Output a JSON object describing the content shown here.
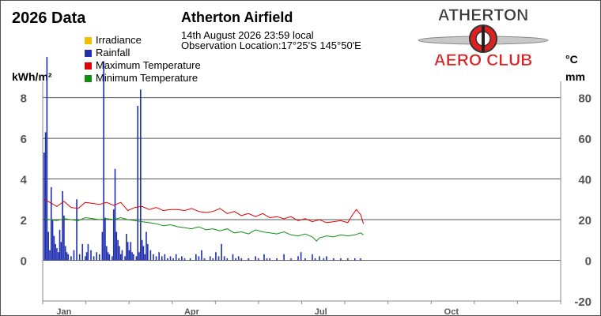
{
  "header": {
    "data_title": "2026 Data",
    "station": "Atherton Airfield",
    "obs_time": "14th August 2026  23:59 local",
    "obs_location": "Observation Location:17°25'S 145°50'E"
  },
  "logo": {
    "word_top": "ATHERTON",
    "word_bottom": "AERO CLUB",
    "colors": {
      "top": "#3a3a3a",
      "bottom": "#e02020"
    }
  },
  "units": {
    "left": "kWh/m²",
    "right_temp": "°C",
    "right_rain": "mm"
  },
  "chart_data": {
    "type": "line",
    "x_axis": {
      "tick_labels": [
        "Jan",
        "Apr",
        "Jul",
        "Oct"
      ],
      "tick_days": [
        15,
        105,
        196,
        288
      ],
      "range_days": [
        0,
        365
      ]
    },
    "y_left": {
      "ticks": [
        0,
        2,
        4,
        6,
        8
      ],
      "range": [
        -2,
        8.8
      ]
    },
    "y_right": {
      "ticks": [
        -20,
        0,
        20,
        40,
        60,
        80
      ],
      "range": [
        -20,
        88
      ]
    },
    "grid": true,
    "legend": [
      {
        "name": "Irradiance",
        "color": "#f0c000"
      },
      {
        "name": "Rainfall",
        "color": "#2030b0"
      },
      {
        "name": "Maximum Temperature",
        "color": "#e00000"
      },
      {
        "name": "Minimum Temperature",
        "color": "#109010"
      }
    ],
    "series": [
      {
        "name": "Maximum Temperature",
        "color": "#e00000",
        "axis": "right",
        "points": [
          [
            1,
            30
          ],
          [
            5,
            28.5
          ],
          [
            10,
            26.5
          ],
          [
            15,
            29
          ],
          [
            20,
            26
          ],
          [
            25,
            25.5
          ],
          [
            30,
            28.5
          ],
          [
            35,
            28
          ],
          [
            40,
            27.5
          ],
          [
            45,
            28.5
          ],
          [
            50,
            27
          ],
          [
            55,
            28.5
          ],
          [
            60,
            24.5
          ],
          [
            65,
            26
          ],
          [
            70,
            26.5
          ],
          [
            75,
            25
          ],
          [
            80,
            26
          ],
          [
            85,
            24.5
          ],
          [
            90,
            25
          ],
          [
            95,
            25
          ],
          [
            100,
            24.5
          ],
          [
            105,
            25.5
          ],
          [
            110,
            24
          ],
          [
            115,
            23.5
          ],
          [
            120,
            24
          ],
          [
            125,
            25.5
          ],
          [
            130,
            23
          ],
          [
            135,
            24
          ],
          [
            140,
            22
          ],
          [
            145,
            23
          ],
          [
            150,
            21.5
          ],
          [
            155,
            23
          ],
          [
            160,
            21
          ],
          [
            165,
            21.5
          ],
          [
            170,
            20.5
          ],
          [
            175,
            21.5
          ],
          [
            180,
            19.5
          ],
          [
            185,
            20.5
          ],
          [
            190,
            19
          ],
          [
            195,
            20
          ],
          [
            200,
            18.5
          ],
          [
            205,
            19
          ],
          [
            210,
            19.5
          ],
          [
            215,
            18.5
          ],
          [
            218,
            22
          ],
          [
            221,
            25
          ],
          [
            224,
            22.5
          ],
          [
            226,
            18
          ]
        ]
      },
      {
        "name": "Minimum Temperature",
        "color": "#109010",
        "axis": "right",
        "points": [
          [
            1,
            20.5
          ],
          [
            5,
            20
          ],
          [
            10,
            19.5
          ],
          [
            15,
            20.5
          ],
          [
            20,
            20
          ],
          [
            25,
            19.5
          ],
          [
            30,
            21
          ],
          [
            35,
            20.5
          ],
          [
            40,
            20
          ],
          [
            45,
            20.5
          ],
          [
            50,
            20
          ],
          [
            55,
            21
          ],
          [
            60,
            20
          ],
          [
            65,
            19.5
          ],
          [
            70,
            19
          ],
          [
            75,
            18.5
          ],
          [
            80,
            18
          ],
          [
            85,
            17
          ],
          [
            90,
            17.5
          ],
          [
            95,
            16.5
          ],
          [
            100,
            16
          ],
          [
            105,
            15.5
          ],
          [
            110,
            16.5
          ],
          [
            115,
            15
          ],
          [
            120,
            15.5
          ],
          [
            125,
            14.5
          ],
          [
            130,
            15.5
          ],
          [
            135,
            13.5
          ],
          [
            140,
            14
          ],
          [
            145,
            13
          ],
          [
            150,
            15
          ],
          [
            155,
            14
          ],
          [
            160,
            13.5
          ],
          [
            165,
            13
          ],
          [
            170,
            14
          ],
          [
            175,
            12.5
          ],
          [
            180,
            12
          ],
          [
            185,
            13
          ],
          [
            190,
            11.5
          ],
          [
            193,
            9.5
          ],
          [
            195,
            11
          ],
          [
            200,
            12
          ],
          [
            205,
            11.5
          ],
          [
            210,
            12.5
          ],
          [
            215,
            12
          ],
          [
            220,
            12.5
          ],
          [
            224,
            13.5
          ],
          [
            226,
            12.5
          ]
        ]
      },
      {
        "name": "Rainfall",
        "color": "#2030b0",
        "axis": "right",
        "points": [
          [
            1,
            53
          ],
          [
            2,
            63
          ],
          [
            3,
            100
          ],
          [
            4,
            14
          ],
          [
            5,
            5
          ],
          [
            6,
            36
          ],
          [
            7,
            20
          ],
          [
            8,
            12
          ],
          [
            9,
            8
          ],
          [
            10,
            6
          ],
          [
            11,
            4
          ],
          [
            12,
            15
          ],
          [
            13,
            9
          ],
          [
            14,
            34
          ],
          [
            15,
            22
          ],
          [
            16,
            7
          ],
          [
            17,
            4
          ],
          [
            18,
            3
          ],
          [
            20,
            2
          ],
          [
            22,
            5
          ],
          [
            24,
            30
          ],
          [
            26,
            3
          ],
          [
            28,
            8
          ],
          [
            30,
            2
          ],
          [
            31,
            4
          ],
          [
            32,
            8
          ],
          [
            34,
            5
          ],
          [
            36,
            2
          ],
          [
            38,
            4
          ],
          [
            40,
            3
          ],
          [
            42,
            14
          ],
          [
            43,
            98
          ],
          [
            44,
            21
          ],
          [
            45,
            7
          ],
          [
            46,
            4
          ],
          [
            47,
            3
          ],
          [
            49,
            2
          ],
          [
            50,
            25
          ],
          [
            51,
            45
          ],
          [
            52,
            14
          ],
          [
            53,
            10
          ],
          [
            54,
            7
          ],
          [
            55,
            3
          ],
          [
            56,
            5
          ],
          [
            58,
            2
          ],
          [
            59,
            13
          ],
          [
            60,
            9
          ],
          [
            61,
            5
          ],
          [
            62,
            9
          ],
          [
            63,
            4
          ],
          [
            64,
            3
          ],
          [
            66,
            2
          ],
          [
            67,
            76
          ],
          [
            68,
            4
          ],
          [
            69,
            84
          ],
          [
            70,
            10
          ],
          [
            71,
            7
          ],
          [
            72,
            3
          ],
          [
            73,
            14
          ],
          [
            74,
            8
          ],
          [
            76,
            5
          ],
          [
            78,
            3
          ],
          [
            80,
            2
          ],
          [
            82,
            4
          ],
          [
            84,
            2
          ],
          [
            86,
            3
          ],
          [
            88,
            1
          ],
          [
            90,
            2
          ],
          [
            92,
            1
          ],
          [
            94,
            3
          ],
          [
            96,
            1
          ],
          [
            98,
            2
          ],
          [
            100,
            1
          ],
          [
            104,
            1
          ],
          [
            108,
            3
          ],
          [
            110,
            2
          ],
          [
            112,
            5
          ],
          [
            114,
            1
          ],
          [
            118,
            2
          ],
          [
            120,
            1
          ],
          [
            122,
            4
          ],
          [
            124,
            2
          ],
          [
            126,
            8
          ],
          [
            128,
            2
          ],
          [
            130,
            1
          ],
          [
            134,
            3
          ],
          [
            136,
            1
          ],
          [
            138,
            2
          ],
          [
            140,
            1
          ],
          [
            145,
            1
          ],
          [
            150,
            2
          ],
          [
            152,
            1
          ],
          [
            156,
            3
          ],
          [
            158,
            1
          ],
          [
            160,
            1
          ],
          [
            165,
            1
          ],
          [
            170,
            3
          ],
          [
            175,
            1
          ],
          [
            180,
            2
          ],
          [
            182,
            4
          ],
          [
            185,
            1
          ],
          [
            190,
            3
          ],
          [
            192,
            1
          ],
          [
            195,
            2
          ],
          [
            198,
            1
          ],
          [
            200,
            2
          ],
          [
            205,
            1
          ],
          [
            210,
            1
          ],
          [
            215,
            1
          ],
          [
            220,
            1
          ],
          [
            224,
            1
          ]
        ]
      }
    ]
  }
}
